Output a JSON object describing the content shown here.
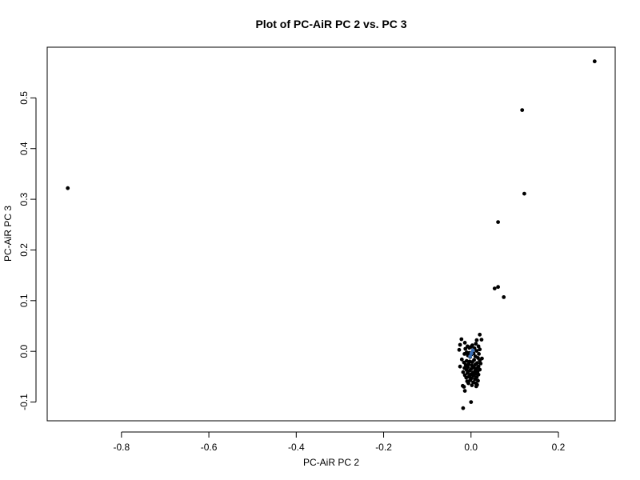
{
  "chart_data": {
    "type": "scatter",
    "title": "Plot of PC-AiR PC 2 vs. PC 3",
    "xlabel": "PC-AiR PC 2",
    "ylabel": "PC-AiR PC 3",
    "xlim": [
      -0.97,
      0.33
    ],
    "ylim": [
      -0.137,
      0.6
    ],
    "xticks": [
      -0.8,
      -0.6,
      -0.4,
      -0.2,
      0.0,
      0.2
    ],
    "xtick_labels": [
      "-0.8",
      "-0.6",
      "-0.4",
      "-0.2",
      "0.0",
      "0.2"
    ],
    "yticks": [
      -0.1,
      0.0,
      0.1,
      0.2,
      0.3,
      0.4,
      0.5
    ],
    "ytick_labels": [
      "-0.1",
      "0.0",
      "0.1",
      "0.2",
      "0.3",
      "0.4",
      "0.5"
    ],
    "grid": false,
    "colors": {
      "points": "#000000",
      "highlight": "#3b6fb6"
    },
    "series": [
      {
        "color": "#000000",
        "points": [
          [
            -0.923,
            0.322
          ],
          [
            0.283,
            0.572
          ],
          [
            0.117,
            0.476
          ],
          [
            0.122,
            0.311
          ],
          [
            0.062,
            0.255
          ],
          [
            0.062,
            0.127
          ],
          [
            0.054,
            0.124
          ],
          [
            0.075,
            0.107
          ],
          [
            0.02,
            0.033
          ],
          [
            -0.022,
            0.024
          ],
          [
            0.024,
            0.023
          ],
          [
            0.013,
            0.022
          ],
          [
            -0.014,
            0.017
          ],
          [
            0.011,
            0.015
          ],
          [
            -0.025,
            0.013
          ],
          [
            0.003,
            0.012
          ],
          [
            -0.008,
            0.01
          ],
          [
            0.017,
            0.01
          ],
          [
            0.0,
            0.009
          ],
          [
            -0.004,
            0.007
          ],
          [
            0.008,
            0.006
          ],
          [
            -0.013,
            0.005
          ],
          [
            0.02,
            0.004
          ],
          [
            -0.027,
            0.003
          ],
          [
            0.013,
            0.001
          ],
          [
            0.004,
            0.0
          ],
          [
            -0.01,
            -0.002
          ],
          [
            -0.004,
            -0.003
          ],
          [
            0.006,
            -0.004
          ],
          [
            0.018,
            -0.005
          ],
          [
            -0.015,
            -0.005
          ],
          [
            0.001,
            -0.006
          ],
          [
            -0.007,
            -0.008
          ],
          [
            0.01,
            -0.01
          ],
          [
            -0.002,
            -0.011
          ],
          [
            0.016,
            -0.013
          ],
          [
            0.025,
            -0.014
          ],
          [
            -0.021,
            -0.016
          ],
          [
            0.007,
            -0.017
          ],
          [
            0.02,
            -0.018
          ],
          [
            -0.01,
            -0.019
          ],
          [
            -0.003,
            -0.02
          ],
          [
            0.003,
            -0.021
          ],
          [
            -0.016,
            -0.022
          ],
          [
            0.014,
            -0.023
          ],
          [
            0.022,
            -0.024
          ],
          [
            -0.005,
            -0.025
          ],
          [
            0.01,
            -0.026
          ],
          [
            -0.012,
            -0.027
          ],
          [
            0.002,
            -0.028
          ],
          [
            -0.025,
            -0.03
          ],
          [
            0.017,
            -0.03
          ],
          [
            -0.007,
            -0.031
          ],
          [
            0.006,
            -0.032
          ],
          [
            -0.015,
            -0.033
          ],
          [
            0.012,
            -0.034
          ],
          [
            0.0,
            -0.035
          ],
          [
            0.02,
            -0.036
          ],
          [
            -0.01,
            -0.037
          ],
          [
            -0.003,
            -0.038
          ],
          [
            0.009,
            -0.039
          ],
          [
            0.015,
            -0.04
          ],
          [
            -0.018,
            -0.041
          ],
          [
            0.004,
            -0.042
          ],
          [
            -0.008,
            -0.043
          ],
          [
            0.011,
            -0.044
          ],
          [
            -0.001,
            -0.046
          ],
          [
            0.017,
            -0.046
          ],
          [
            -0.014,
            -0.047
          ],
          [
            0.006,
            -0.048
          ],
          [
            -0.005,
            -0.05
          ],
          [
            0.013,
            -0.051
          ],
          [
            -0.011,
            -0.052
          ],
          [
            0.001,
            -0.053
          ],
          [
            0.009,
            -0.055
          ],
          [
            -0.002,
            -0.057
          ],
          [
            0.016,
            -0.058
          ],
          [
            -0.009,
            -0.059
          ],
          [
            0.005,
            -0.061
          ],
          [
            0.011,
            -0.063
          ],
          [
            -0.006,
            -0.063
          ],
          [
            0.014,
            -0.066
          ],
          [
            0.002,
            -0.067
          ],
          [
            -0.019,
            -0.068
          ],
          [
            0.012,
            -0.069
          ],
          [
            -0.016,
            -0.07
          ],
          [
            -0.014,
            -0.078
          ],
          [
            0.0,
            -0.1
          ],
          [
            -0.018,
            -0.112
          ]
        ]
      },
      {
        "color": "#3b6fb6",
        "points": [
          [
            0.001,
            -0.004
          ],
          [
            -0.002,
            -0.01
          ],
          [
            0.004,
            0.002
          ]
        ]
      }
    ]
  }
}
